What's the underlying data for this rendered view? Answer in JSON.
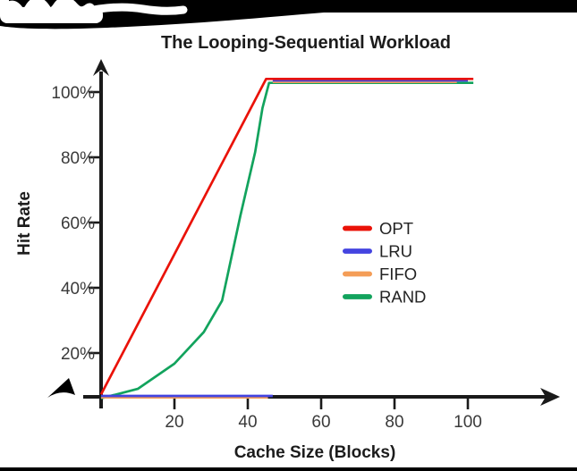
{
  "page": {
    "background": "#ffffff"
  },
  "decor": {
    "top_bar_color": "#000000",
    "bottom_bar_color": "#000000",
    "scribble_color": "#ffffff",
    "cursor_color": "#000000"
  },
  "chart_data": {
    "type": "line",
    "title": "The Looping-Sequential Workload",
    "xlabel": "Cache Size (Blocks)",
    "ylabel": "Hit Rate",
    "axis_color": "#1a1a1a",
    "text_color": "#3a3a3a",
    "xlim": [
      0,
      110
    ],
    "ylim": [
      0,
      100
    ],
    "grid": false,
    "legend_position": "center-right",
    "x_tick_values": [
      20,
      40,
      60,
      80,
      100
    ],
    "x_tick_labels": [
      "20",
      "40",
      "60",
      "80",
      "100"
    ],
    "y_tick_values": [
      20,
      40,
      60,
      80,
      100
    ],
    "y_tick_labels": [
      "20%",
      "40%",
      "60%",
      "80%",
      "100%"
    ],
    "series": [
      {
        "name": "OPT",
        "color": "#ea1208",
        "segments": [
          [
            [
              0,
              0
            ],
            [
              45,
              100
            ],
            [
              101.5,
              100
            ]
          ]
        ]
      },
      {
        "name": "LRU",
        "color": "#4444e0",
        "segments": [
          [
            [
              0,
              0
            ],
            [
              46.8,
              0
            ]
          ],
          [
            [
              46.8,
              100
            ],
            [
              100,
              100
            ]
          ]
        ]
      },
      {
        "name": "FIFO",
        "color": "#f49d57",
        "segments": [
          [
            [
              0,
              0
            ],
            [
              45.5,
              0
            ]
          ],
          [
            [
              46.8,
              100
            ],
            [
              97,
              100
            ]
          ]
        ]
      },
      {
        "name": "RAND",
        "color": "#12a35d",
        "segments": [
          [
            [
              0,
              0
            ],
            [
              10,
              3
            ],
            [
              20,
              11
            ],
            [
              28,
              21
            ],
            [
              33,
              31
            ],
            [
              38,
              58
            ],
            [
              42,
              78
            ],
            [
              44,
              92
            ],
            [
              45.8,
              100
            ],
            [
              101.5,
              100
            ]
          ]
        ]
      }
    ]
  }
}
